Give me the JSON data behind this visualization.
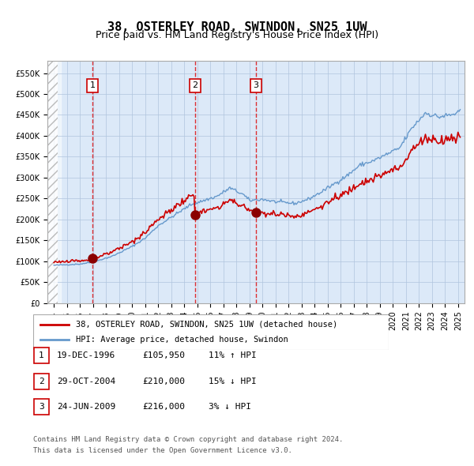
{
  "title": "38, OSTERLEY ROAD, SWINDON, SN25 1UW",
  "subtitle": "Price paid vs. HM Land Registry's House Price Index (HPI)",
  "legend_line1": "38, OSTERLEY ROAD, SWINDON, SN25 1UW (detached house)",
  "legend_line2": "HPI: Average price, detached house, Swindon",
  "footer1": "Contains HM Land Registry data © Crown copyright and database right 2024.",
  "footer2": "This data is licensed under the Open Government Licence v3.0.",
  "transactions": [
    {
      "num": 1,
      "date": "19-DEC-1996",
      "price": 105950,
      "hpi_pct": "11%",
      "hpi_dir": "↑"
    },
    {
      "num": 2,
      "date": "29-OCT-2004",
      "price": 210000,
      "hpi_pct": "15%",
      "hpi_dir": "↓"
    },
    {
      "num": 3,
      "date": "24-JUN-2009",
      "price": 216000,
      "hpi_pct": "3%",
      "hpi_dir": "↓"
    }
  ],
  "transaction_dates_decimal": [
    1996.97,
    2004.83,
    2009.48
  ],
  "transaction_prices": [
    105950,
    210000,
    216000
  ],
  "ylim": [
    0,
    580000
  ],
  "yticks": [
    0,
    50000,
    100000,
    150000,
    200000,
    250000,
    300000,
    350000,
    400000,
    450000,
    500000,
    550000
  ],
  "background_color": "#dce9f8",
  "hatch_color": "#c0c0c0",
  "red_line_color": "#cc0000",
  "blue_line_color": "#6699cc",
  "vline_color": "#dd0000",
  "box_color": "#cc0000",
  "title_fontsize": 11,
  "subtitle_fontsize": 9,
  "axis_label_fontsize": 8
}
